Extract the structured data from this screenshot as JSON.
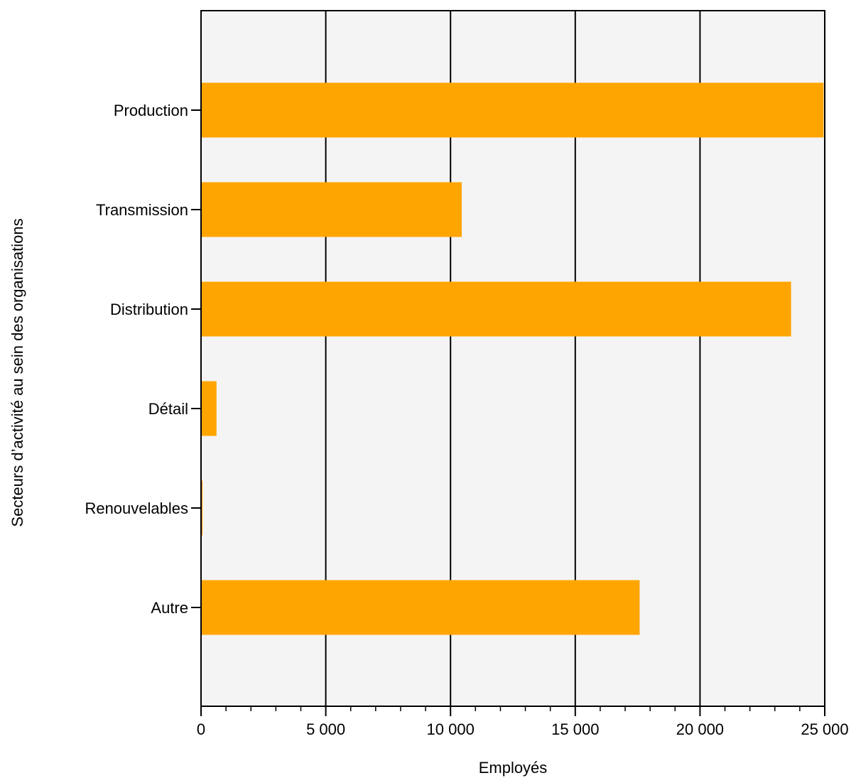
{
  "chart_data": {
    "type": "bar",
    "orientation": "horizontal",
    "categories": [
      "Production",
      "Transmission",
      "Distribution",
      "Détail",
      "Renouvelables",
      "Autre"
    ],
    "values": [
      24950,
      10450,
      23650,
      620,
      60,
      17580
    ],
    "xlabel": "Employés",
    "ylabel": "Secteurs d’activité au sein des organisations",
    "xlim": [
      0,
      25000
    ],
    "xticks": [
      0,
      5000,
      10000,
      15000,
      20000,
      25000
    ],
    "xtick_labels": [
      "0",
      "5 000",
      "10 000",
      "15 000",
      "20 000",
      "25 000"
    ],
    "grid": "vertical",
    "colors": {
      "bar": "#FFA500",
      "plot_background": "#F4F4F4",
      "grid": "#000000"
    }
  }
}
